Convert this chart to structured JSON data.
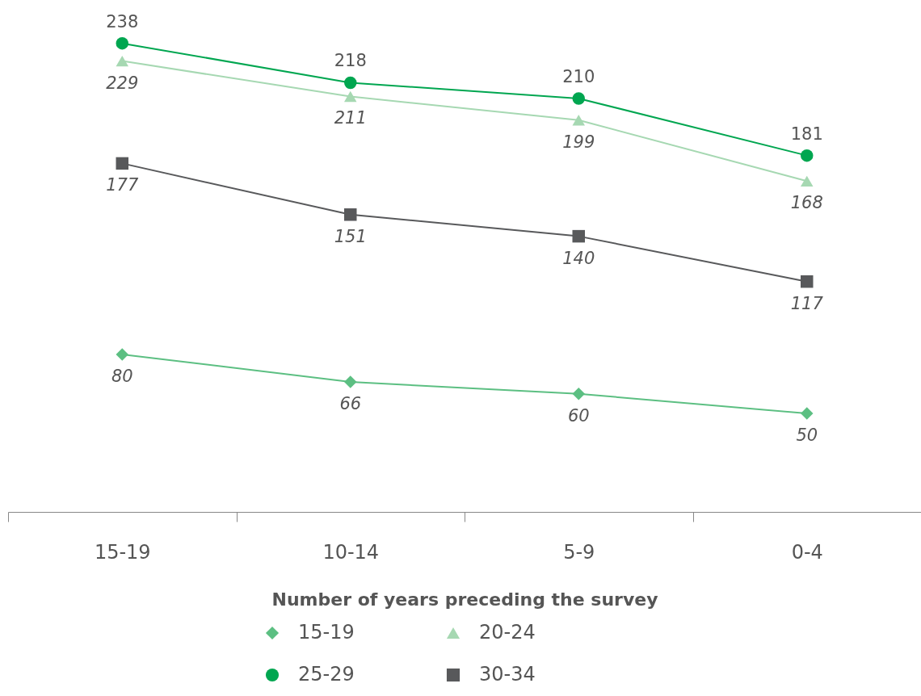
{
  "chart_data": {
    "type": "line",
    "xlabel": "Number of years preceding the survey",
    "categories": [
      "15-19",
      "10-14",
      "5-9",
      "0-4"
    ],
    "series": [
      {
        "name": "15-19",
        "color": "#5cbf82",
        "marker": "diamond",
        "values": [
          80,
          66,
          60,
          50
        ]
      },
      {
        "name": "25-29",
        "color": "#00a650",
        "marker": "circle",
        "values": [
          238,
          218,
          210,
          181
        ]
      },
      {
        "name": "20-24",
        "color": "#a6d8b2",
        "marker": "triangle",
        "values": [
          229,
          211,
          199,
          168
        ]
      },
      {
        "name": "30-34",
        "color": "#58595b",
        "marker": "square",
        "values": [
          177,
          151,
          140,
          117
        ]
      }
    ],
    "ylim": [
      0,
      260
    ],
    "tick_labels": "x",
    "data_labels": true,
    "legend": "bottom",
    "grid": false
  }
}
